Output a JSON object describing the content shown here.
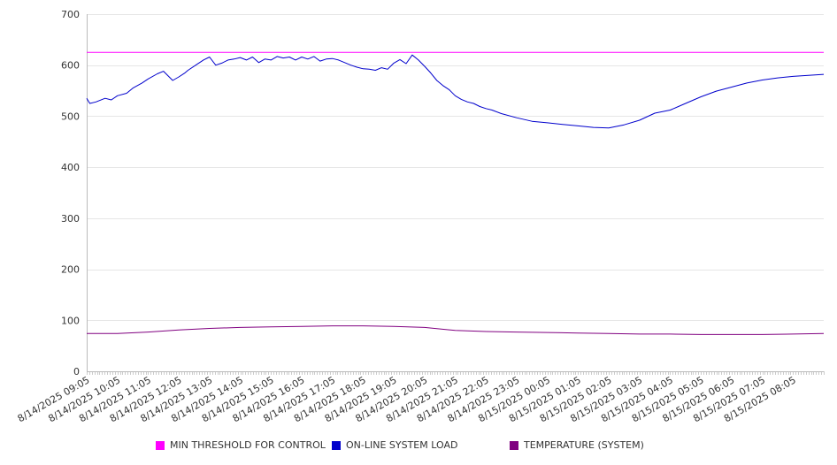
{
  "chart_data": {
    "type": "line",
    "ylim": [
      0,
      700
    ],
    "yticks": [
      0,
      100,
      200,
      300,
      400,
      500,
      600,
      700
    ],
    "x_tick_labels": [
      "8/14/2025 09:05",
      "8/14/2025 10:05",
      "8/14/2025 11:05",
      "8/14/2025 12:05",
      "8/14/2025 13:05",
      "8/14/2025 14:05",
      "8/14/2025 15:05",
      "8/14/2025 16:05",
      "8/14/2025 17:05",
      "8/14/2025 18:05",
      "8/14/2025 19:05",
      "8/14/2025 20:05",
      "8/14/2025 21:05",
      "8/14/2025 22:05",
      "8/14/2025 23:05",
      "8/15/2025 00:05",
      "8/15/2025 01:05",
      "8/15/2025 02:05",
      "8/15/2025 03:05",
      "8/15/2025 04:05",
      "8/15/2025 05:05",
      "8/15/2025 06:05",
      "8/15/2025 07:05",
      "8/15/2025 08:05"
    ],
    "x_hour_range": [
      0,
      24
    ],
    "grid": true,
    "legend_position": "bottom",
    "series": [
      {
        "name": "MIN THRESHOLD FOR CONTROL",
        "color": "#ff00ff",
        "x": [
          0,
          24
        ],
        "values": [
          625,
          625
        ]
      },
      {
        "name": "ON-LINE SYSTEM LOAD",
        "color": "#0000cc",
        "x": [
          0,
          0.1,
          0.3,
          0.6,
          0.8,
          1.0,
          1.3,
          1.5,
          1.8,
          2.0,
          2.3,
          2.5,
          2.8,
          3.0,
          3.2,
          3.3,
          3.6,
          3.8,
          4.0,
          4.2,
          4.4,
          4.6,
          4.8,
          5.0,
          5.2,
          5.4,
          5.6,
          5.8,
          6.0,
          6.2,
          6.4,
          6.6,
          6.8,
          7.0,
          7.2,
          7.4,
          7.6,
          7.8,
          8.0,
          8.2,
          8.4,
          8.6,
          8.8,
          9.0,
          9.2,
          9.4,
          9.6,
          9.8,
          10.0,
          10.2,
          10.4,
          10.6,
          10.8,
          11.0,
          11.2,
          11.4,
          11.6,
          11.8,
          12.0,
          12.2,
          12.4,
          12.6,
          12.8,
          13.0,
          13.2,
          13.5,
          14.0,
          14.5,
          15.0,
          15.5,
          16.0,
          16.5,
          17.0,
          17.5,
          18.0,
          18.5,
          19.0,
          19.5,
          20.0,
          20.5,
          21.0,
          21.5,
          22.0,
          22.5,
          23.0,
          23.5,
          24.0
        ],
        "values": [
          535,
          525,
          528,
          535,
          532,
          540,
          545,
          555,
          565,
          573,
          583,
          588,
          570,
          577,
          585,
          590,
          602,
          610,
          616,
          600,
          604,
          610,
          612,
          615,
          610,
          616,
          605,
          612,
          610,
          617,
          614,
          616,
          610,
          616,
          612,
          617,
          608,
          612,
          613,
          610,
          605,
          600,
          596,
          593,
          592,
          590,
          595,
          592,
          604,
          611,
          603,
          620,
          610,
          598,
          585,
          570,
          560,
          552,
          540,
          533,
          528,
          525,
          519,
          515,
          512,
          505,
          497,
          490,
          487,
          484,
          481,
          478,
          477,
          483,
          492,
          506,
          512,
          525,
          538,
          549,
          557,
          565,
          571,
          575,
          578,
          580,
          582
        ]
      },
      {
        "name": "TEMPERATURE (SYSTEM)",
        "color": "#800080",
        "x": [
          0,
          1,
          2,
          3,
          4,
          5,
          6,
          7,
          8,
          9,
          10,
          11,
          12,
          13,
          14,
          15,
          16,
          17,
          18,
          19,
          20,
          21,
          22,
          23,
          24
        ],
        "values": [
          74,
          74,
          77,
          81,
          84,
          86,
          87,
          88,
          89,
          89,
          88,
          86,
          80,
          78,
          77,
          76,
          75,
          74,
          73,
          73,
          72,
          72,
          72,
          73,
          74
        ]
      }
    ]
  }
}
